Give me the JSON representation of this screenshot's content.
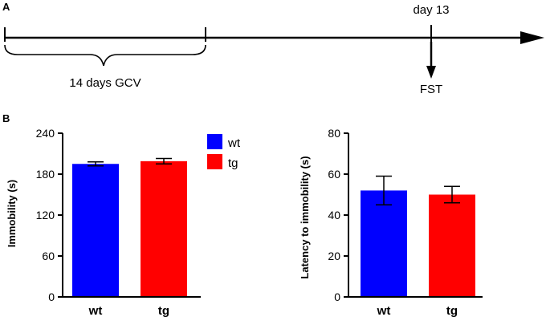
{
  "panels": {
    "a_label": "A",
    "b_label": "B"
  },
  "timeline": {
    "treatment_label": "14 days GCV",
    "day_label": "day 13",
    "test_label": "FST"
  },
  "legend": [
    {
      "label": "wt",
      "color": "#0000ff"
    },
    {
      "label": "tg",
      "color": "#ff0000"
    }
  ],
  "chart_data": [
    {
      "type": "bar",
      "categories": [
        "wt",
        "tg"
      ],
      "values": [
        195,
        199
      ],
      "errors": [
        3,
        4
      ],
      "colors": [
        "#0000ff",
        "#ff0000"
      ],
      "ylabel": "Immobility (s)",
      "ylim": [
        0,
        240
      ],
      "yticks": [
        0,
        60,
        120,
        180,
        240
      ],
      "ytick_labels": [
        "0",
        "60",
        "120",
        "180",
        "240"
      ]
    },
    {
      "type": "bar",
      "categories": [
        "wt",
        "tg"
      ],
      "values": [
        52,
        50
      ],
      "errors": [
        7,
        4
      ],
      "colors": [
        "#0000ff",
        "#ff0000"
      ],
      "ylabel": "Latency to immobility (s)",
      "ylim": [
        0,
        80
      ],
      "yticks": [
        0,
        20,
        40,
        60,
        80
      ],
      "ytick_labels": [
        "0",
        "20",
        "40",
        "60",
        "80"
      ]
    }
  ]
}
